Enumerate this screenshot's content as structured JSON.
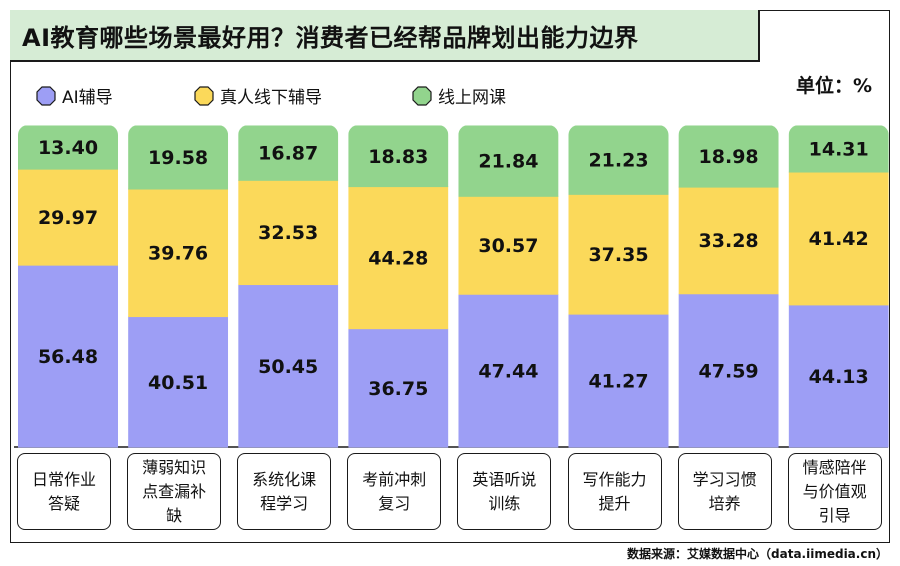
{
  "title": "AI教育哪些场景最好用？消费者已经帮品牌划出能力边界",
  "unit": "单位：%",
  "source": "数据来源：艾媒数据中心（data.iimedia.cn）",
  "colors": {
    "ai": "#9d9ef5",
    "offline": "#fbd95a",
    "online": "#92d48d"
  },
  "chart_data": {
    "type": "bar",
    "stacked": true,
    "ylim": [
      0,
      100
    ],
    "legend_position": "top-left",
    "categories": [
      "日常作业答疑",
      "薄弱知识点查漏补缺",
      "系统化课程学习",
      "考前冲刺复习",
      "英语听说训练",
      "写作能力提升",
      "学习习惯培养",
      "情感陪伴与价值观引导"
    ],
    "series": [
      {
        "name": "AI辅导",
        "values": [
          56.48,
          40.51,
          50.45,
          36.75,
          47.44,
          41.27,
          47.59,
          44.13
        ]
      },
      {
        "name": "真人线下辅导",
        "values": [
          29.97,
          39.76,
          32.53,
          44.28,
          30.57,
          37.35,
          33.28,
          41.42
        ]
      },
      {
        "name": "线上网课",
        "values": [
          13.4,
          19.58,
          16.87,
          18.83,
          21.84,
          21.23,
          18.98,
          14.31
        ]
      }
    ]
  }
}
